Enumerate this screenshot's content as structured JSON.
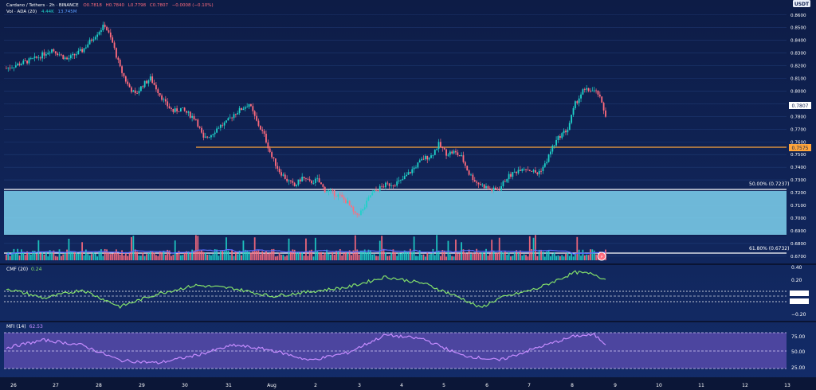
{
  "header": {
    "line1": "Cardano / Tethers · 2h · BINANCE",
    "ohlc": [
      "O0.7818",
      "H0.7840",
      "L0.7798",
      "C0.7807",
      "−0.0008 (−0.10%)"
    ],
    "line2_name": "Vol · ADA (20)",
    "line2_v1": "4.44K",
    "line2_v2": "13.745M"
  },
  "currency_badge": "USDT",
  "colors": {
    "background": "#0f2256",
    "up": "#1fd1c8",
    "down": "#ff6b7d",
    "support_zone": "#7fd2ee",
    "orange_line": "#ffa53a",
    "cmf_line": "#84e06a",
    "mfi_line": "#c58cff",
    "mfi_band": "#7b5bd0",
    "volume_ma": "#5a6bff"
  },
  "price_axis": {
    "labels": [
      "0.8600",
      "0.8500",
      "0.8400",
      "0.8300",
      "0.8200",
      "0.8100",
      "0.8000",
      "0.7900",
      "0.7800",
      "0.7700",
      "0.7600",
      "0.7500",
      "0.7400",
      "0.7300",
      "0.7200",
      "0.7100",
      "0.7000",
      "0.6900",
      "0.6800",
      "0.6700"
    ],
    "current_tag": "0.7807",
    "orange_tag": "0.7575"
  },
  "levels": {
    "fib50": "50.00% (0.7237)",
    "fib618": "61.80% (0.6732)"
  },
  "cmf": {
    "label": "CMF (20)",
    "value": "0.24",
    "axis": [
      "0.40",
      "0.20",
      "−0.20"
    ]
  },
  "mfi": {
    "label": "MFI (14)",
    "value": "62.53",
    "axis": [
      "75.00",
      "50.00",
      "25.00"
    ]
  },
  "time_axis": [
    "26",
    "27",
    "28",
    "29",
    "30",
    "31",
    "Aug",
    "2",
    "3",
    "4",
    "5",
    "6",
    "7",
    "8",
    "9",
    "10",
    "11",
    "12",
    "13"
  ],
  "chart_data": {
    "type": "candlestick",
    "symbol": "ADAUSDT",
    "timeframe": "2h",
    "ylim": [
      0.668,
      0.868
    ],
    "x_labels": [
      "26",
      "27",
      "28",
      "29",
      "30",
      "31",
      "Aug",
      "2",
      "3",
      "4",
      "5",
      "6",
      "7",
      "8",
      "9",
      "10",
      "11",
      "12",
      "13"
    ],
    "price_path": [
      [
        0,
        0.818
      ],
      [
        8,
        0.822
      ],
      [
        16,
        0.826
      ],
      [
        24,
        0.833
      ],
      [
        32,
        0.825
      ],
      [
        40,
        0.832
      ],
      [
        48,
        0.846
      ],
      [
        52,
        0.852
      ],
      [
        56,
        0.838
      ],
      [
        60,
        0.818
      ],
      [
        64,
        0.805
      ],
      [
        68,
        0.797
      ],
      [
        72,
        0.805
      ],
      [
        76,
        0.81
      ],
      [
        80,
        0.8
      ],
      [
        84,
        0.79
      ],
      [
        88,
        0.784
      ],
      [
        92,
        0.786
      ],
      [
        96,
        0.782
      ],
      [
        100,
        0.778
      ],
      [
        104,
        0.762
      ],
      [
        108,
        0.766
      ],
      [
        112,
        0.772
      ],
      [
        116,
        0.775
      ],
      [
        120,
        0.782
      ],
      [
        124,
        0.786
      ],
      [
        128,
        0.79
      ],
      [
        132,
        0.776
      ],
      [
        136,
        0.765
      ],
      [
        140,
        0.748
      ],
      [
        144,
        0.737
      ],
      [
        148,
        0.73
      ],
      [
        152,
        0.725
      ],
      [
        156,
        0.732
      ],
      [
        160,
        0.728
      ],
      [
        164,
        0.73
      ],
      [
        168,
        0.722
      ],
      [
        172,
        0.72
      ],
      [
        176,
        0.717
      ],
      [
        180,
        0.712
      ],
      [
        184,
        0.702
      ],
      [
        188,
        0.706
      ],
      [
        192,
        0.718
      ],
      [
        196,
        0.723
      ],
      [
        200,
        0.726
      ],
      [
        204,
        0.727
      ],
      [
        208,
        0.729
      ],
      [
        212,
        0.735
      ],
      [
        216,
        0.741
      ],
      [
        220,
        0.747
      ],
      [
        224,
        0.749
      ],
      [
        228,
        0.758
      ],
      [
        232,
        0.751
      ],
      [
        236,
        0.752
      ],
      [
        240,
        0.748
      ],
      [
        244,
        0.735
      ],
      [
        248,
        0.728
      ],
      [
        252,
        0.725
      ],
      [
        256,
        0.722
      ],
      [
        260,
        0.723
      ],
      [
        264,
        0.732
      ],
      [
        268,
        0.736
      ],
      [
        272,
        0.74
      ],
      [
        276,
        0.738
      ],
      [
        280,
        0.735
      ],
      [
        284,
        0.742
      ],
      [
        288,
        0.756
      ],
      [
        292,
        0.765
      ],
      [
        296,
        0.77
      ],
      [
        300,
        0.79
      ],
      [
        304,
        0.8
      ],
      [
        308,
        0.801
      ],
      [
        312,
        0.798
      ],
      [
        316,
        0.781
      ]
    ],
    "indicators": {
      "volume_ma20": true,
      "cmf_period": 20,
      "mfi_period": 14,
      "fib_levels": [
        {
          "label": "50.00%",
          "value": 0.7237
        },
        {
          "label": "61.80%",
          "value": 0.6732
        }
      ],
      "support_zone": [
        0.688,
        0.722
      ],
      "horizontal_line": 0.7575
    },
    "cmf_path": [
      [
        0,
        0.1
      ],
      [
        20,
        -0.05
      ],
      [
        40,
        0.08
      ],
      [
        60,
        -0.18
      ],
      [
        80,
        0.02
      ],
      [
        100,
        0.15
      ],
      [
        120,
        0.1
      ],
      [
        140,
        -0.02
      ],
      [
        160,
        0.05
      ],
      [
        180,
        0.12
      ],
      [
        200,
        0.28
      ],
      [
        220,
        0.18
      ],
      [
        240,
        -0.05
      ],
      [
        250,
        -0.2
      ],
      [
        260,
        -0.05
      ],
      [
        280,
        0.1
      ],
      [
        300,
        0.35
      ],
      [
        310,
        0.32
      ],
      [
        316,
        0.24
      ]
    ],
    "mfi_path": [
      [
        0,
        55
      ],
      [
        20,
        70
      ],
      [
        40,
        60
      ],
      [
        60,
        30
      ],
      [
        80,
        25
      ],
      [
        100,
        40
      ],
      [
        120,
        60
      ],
      [
        140,
        50
      ],
      [
        160,
        30
      ],
      [
        180,
        45
      ],
      [
        200,
        80
      ],
      [
        220,
        72
      ],
      [
        240,
        40
      ],
      [
        260,
        30
      ],
      [
        280,
        55
      ],
      [
        300,
        78
      ],
      [
        310,
        80
      ],
      [
        316,
        62.53
      ]
    ]
  }
}
